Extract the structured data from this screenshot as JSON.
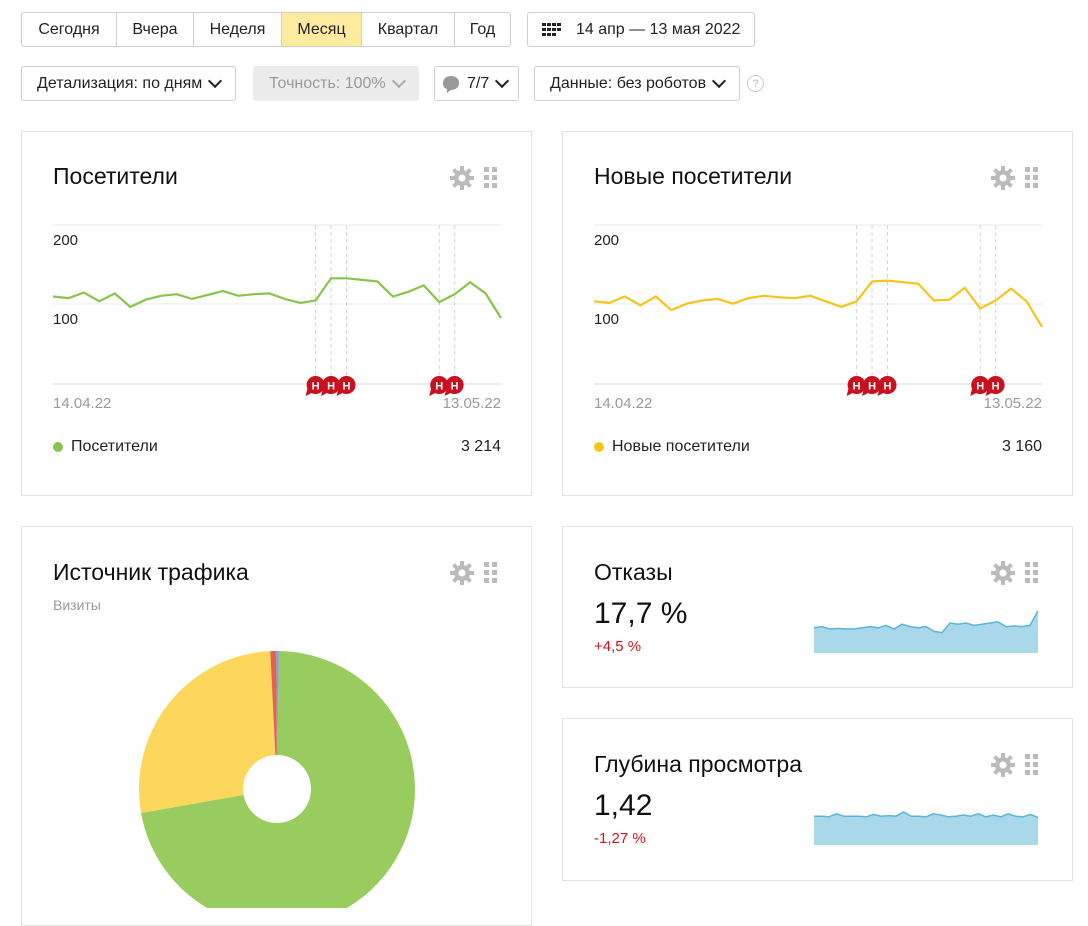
{
  "period_tabs": [
    {
      "label": "Сегодня"
    },
    {
      "label": "Вчера"
    },
    {
      "label": "Неделя"
    },
    {
      "label": "Месяц",
      "active": true
    },
    {
      "label": "Квартал"
    },
    {
      "label": "Год"
    }
  ],
  "date_range": "14 апр — 13 мая 2022",
  "filters": {
    "detail": "Детализация: по дням",
    "accuracy": "Точность: 100%",
    "comments": "7/7",
    "data": "Данные: без роботов",
    "help": "?"
  },
  "visitors_widget": {
    "title": "Посетители",
    "y_ticks": [
      "200",
      "100"
    ],
    "date_start": "14.04.22",
    "date_end": "13.05.22",
    "legend": "Посетители",
    "total": "3 214",
    "color": "#8ac34a"
  },
  "new_visitors_widget": {
    "title": "Новые посетители",
    "y_ticks": [
      "200",
      "100"
    ],
    "date_start": "14.04.22",
    "date_end": "13.05.22",
    "legend": "Новые посетители",
    "total": "3 160",
    "color": "#f5c518"
  },
  "traffic_widget": {
    "title": "Источник трафика",
    "subtitle": "Визиты"
  },
  "bounce_widget": {
    "title": "Отказы",
    "value": "17,7 %",
    "delta": "+4,5 %"
  },
  "depth_widget": {
    "title": "Глубина просмотра",
    "value": "1,42",
    "delta": "-1,27 %"
  },
  "annotation_marker": "Н",
  "chart_data": [
    {
      "type": "line",
      "series": [
        {
          "name": "Посетители",
          "values": [
            110,
            108,
            115,
            104,
            114,
            97,
            106,
            111,
            113,
            107,
            112,
            117,
            111,
            113,
            114,
            107,
            102,
            105,
            133,
            133,
            131,
            129,
            110,
            116,
            124,
            103,
            113,
            128,
            114,
            83
          ]
        }
      ],
      "ylim": [
        0,
        200
      ]
    },
    {
      "type": "line",
      "series": [
        {
          "name": "Новые посетители",
          "values": [
            104,
            102,
            110,
            99,
            110,
            93,
            101,
            105,
            107,
            101,
            108,
            111,
            109,
            108,
            111,
            104,
            97,
            104,
            129,
            130,
            128,
            126,
            105,
            106,
            121,
            95,
            105,
            120,
            104,
            72
          ]
        }
      ],
      "ylim": [
        0,
        200
      ]
    },
    {
      "type": "pie",
      "series": [
        {
          "values": [
            72,
            27,
            0.7,
            0.3
          ]
        }
      ],
      "colors": [
        "#99cc5e",
        "#fcd75c",
        "#e8614f",
        "#7aa7d8"
      ]
    },
    {
      "type": "area",
      "series": [
        {
          "values": [
            42,
            44,
            40,
            41,
            40,
            40,
            42,
            44,
            42,
            46,
            40,
            48,
            44,
            42,
            44,
            36,
            34,
            50,
            48,
            50,
            46,
            48,
            50,
            52,
            44,
            45,
            44,
            46,
            70
          ]
        }
      ],
      "ylim": [
        0,
        100
      ]
    },
    {
      "type": "area",
      "series": [
        {
          "values": [
            48,
            48,
            47,
            52,
            48,
            48,
            48,
            47,
            51,
            48,
            49,
            48,
            55,
            48,
            48,
            47,
            52,
            50,
            47,
            48,
            50,
            48,
            52,
            47,
            50,
            47,
            52,
            48,
            47,
            51,
            46
          ]
        }
      ],
      "ylim": [
        0,
        100
      ]
    }
  ]
}
